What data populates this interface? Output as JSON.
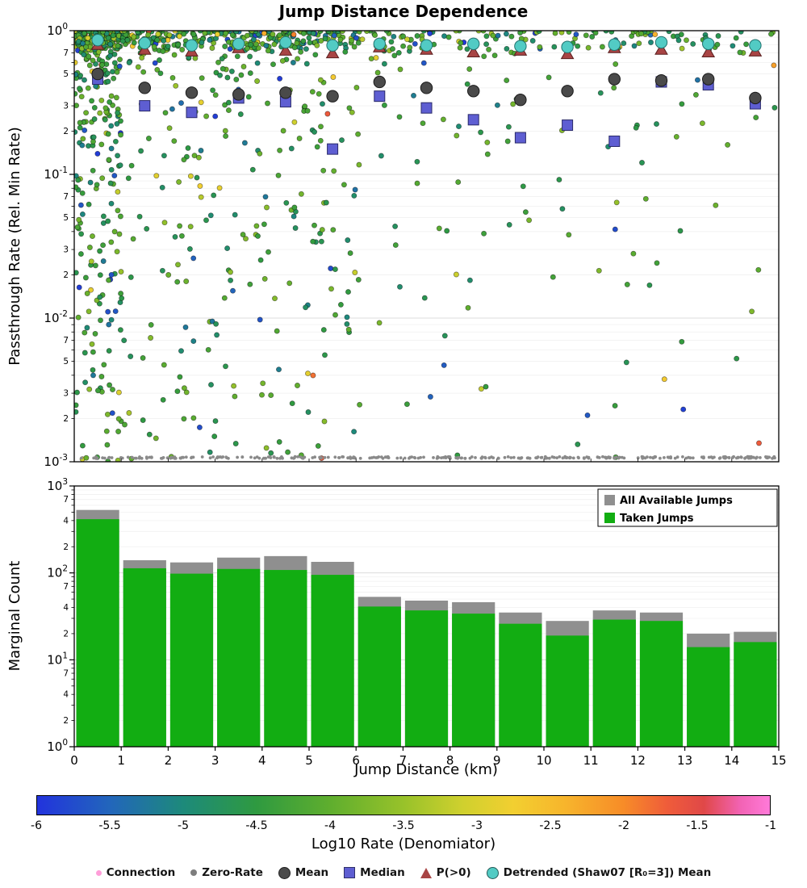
{
  "title": "Jump Distance Dependence",
  "chart_data": [
    {
      "type": "scatter",
      "panel": "top",
      "ylabel": "Passthrough Rate (Rel. Min Rate)",
      "xlim": [
        0,
        15
      ],
      "ylog_lim": [
        -3,
        0
      ],
      "y_major_exponents": [
        0,
        -1,
        -2,
        -3
      ],
      "y_minor_labeled": [
        7,
        5,
        3,
        2
      ],
      "grid": true,
      "bin_centers": [
        0.5,
        1.5,
        2.5,
        3.5,
        4.5,
        5.5,
        6.5,
        7.5,
        8.5,
        9.5,
        10.5,
        11.5,
        12.5,
        13.5,
        14.5
      ],
      "series": [
        {
          "name": "Mean",
          "marker": "circle",
          "color": "#4a4a4a",
          "values": [
            0.5,
            0.4,
            0.37,
            0.36,
            0.37,
            0.35,
            0.44,
            0.4,
            0.38,
            0.33,
            0.38,
            0.46,
            0.45,
            0.46,
            0.34
          ]
        },
        {
          "name": "Median",
          "marker": "square",
          "color": "#5e5ed2",
          "values": [
            0.46,
            0.3,
            0.27,
            0.34,
            0.32,
            0.15,
            0.35,
            0.29,
            0.24,
            0.18,
            0.22,
            0.17,
            0.44,
            0.42,
            0.31
          ]
        },
        {
          "name": "P(>0)",
          "marker": "triangle",
          "color": "#a84444",
          "values": [
            0.8,
            0.74,
            0.72,
            0.76,
            0.73,
            0.7,
            0.77,
            0.74,
            0.71,
            0.73,
            0.69,
            0.76,
            0.74,
            0.71,
            0.72
          ]
        },
        {
          "name": "Detrended (Shaw07 [R₀=3]) Mean",
          "marker": "circle",
          "color": "#52cbc4",
          "values": [
            0.86,
            0.82,
            0.79,
            0.81,
            0.83,
            0.79,
            0.81,
            0.79,
            0.81,
            0.78,
            0.77,
            0.8,
            0.83,
            0.81,
            0.79
          ]
        }
      ],
      "zero_rate": {
        "y": 0.00107,
        "color": "#8a8a8a",
        "count": 300
      },
      "scatter_cloud": {
        "seed": 20240613,
        "counts_per_bin": [
          415,
          113,
          98,
          111,
          108,
          95,
          41,
          37,
          34,
          26,
          19,
          29,
          28,
          14,
          16
        ],
        "lograte_center": -4.35,
        "lograte_spread": 0.85
      }
    },
    {
      "type": "bar",
      "panel": "bottom",
      "ylabel": "Marginal Count",
      "xlabel": "Jump Distance (km)",
      "ylog_lim": [
        0,
        3
      ],
      "y_major_exponents": [
        0,
        1,
        2,
        3
      ],
      "y_minor_labeled": [
        7,
        4,
        2
      ],
      "x_ticks": [
        0,
        1,
        2,
        3,
        4,
        5,
        6,
        7,
        8,
        9,
        10,
        11,
        12,
        13,
        14,
        15
      ],
      "bin_edges": [
        0,
        1,
        2,
        3,
        4,
        5,
        6,
        7,
        8,
        9,
        10,
        11,
        12,
        13,
        14,
        15
      ],
      "series": [
        {
          "name": "All Available Jumps",
          "color": "#8f8f8f",
          "values": [
            530,
            140,
            132,
            150,
            156,
            134,
            53,
            48,
            46,
            35,
            28,
            37,
            35,
            20,
            21
          ]
        },
        {
          "name": "Taken Jumps",
          "color": "#12ad12",
          "values": [
            415,
            113,
            98,
            111,
            108,
            95,
            41,
            37,
            34,
            26,
            19,
            29,
            28,
            14,
            16
          ]
        }
      ],
      "legend_position": "upper right"
    }
  ],
  "colorbar": {
    "label": "Log10 Rate (Denomiator)",
    "range": [
      -6,
      -1
    ],
    "ticks": [
      -6,
      -5.5,
      -5,
      -4.5,
      -4,
      -3.5,
      -3,
      -2.5,
      -2,
      -1.5,
      -1
    ],
    "tick_labels": [
      "-6",
      "-5.5",
      "-5",
      "-4.5",
      "-4",
      "-3.5",
      "-3",
      "-2.5",
      "-2",
      "-1.5",
      "-1"
    ],
    "stops": [
      [
        0,
        "#2233dd"
      ],
      [
        0.1,
        "#2266bb"
      ],
      [
        0.2,
        "#1d8a7a"
      ],
      [
        0.3,
        "#2f9a40"
      ],
      [
        0.4,
        "#5fae2e"
      ],
      [
        0.5,
        "#98c22a"
      ],
      [
        0.58,
        "#cfd02e"
      ],
      [
        0.65,
        "#f2cf30"
      ],
      [
        0.72,
        "#f7b52c"
      ],
      [
        0.8,
        "#f78c28"
      ],
      [
        0.86,
        "#ef5c3a"
      ],
      [
        0.91,
        "#e04848"
      ],
      [
        0.96,
        "#f263b4"
      ],
      [
        1,
        "#ff7ad9"
      ]
    ]
  },
  "marker_legend": [
    {
      "label": "Connection",
      "marker": "dot",
      "color": "#ff9ed9",
      "size": 7
    },
    {
      "label": "Zero-Rate",
      "marker": "dot",
      "color": "#7d7d7d",
      "size": 8
    },
    {
      "label": "Mean",
      "marker": "circle",
      "color": "#4a4a4a",
      "size": 13
    },
    {
      "label": "Median",
      "marker": "square",
      "color": "#5e5ed2",
      "size": 12
    },
    {
      "label": "P(>0)",
      "marker": "triangle",
      "color": "#a84444",
      "size": 13
    },
    {
      "label": "Detrended (Shaw07 [R₀=3]) Mean",
      "marker": "circle",
      "color": "#52cbc4",
      "size": 13
    }
  ]
}
